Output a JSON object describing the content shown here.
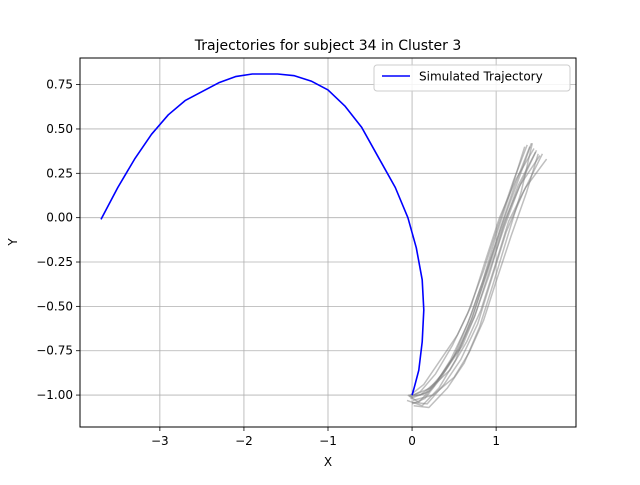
{
  "chart_data": {
    "type": "line",
    "title": "Trajectories for subject 34 in Cluster 3",
    "xlabel": "X",
    "ylabel": "Y",
    "xlim": [
      -3.95,
      1.95
    ],
    "ylim": [
      -1.18,
      0.9
    ],
    "xticks": [
      -3,
      -2,
      -1,
      0,
      1
    ],
    "xtick_labels": [
      "−3",
      "−2",
      "−1",
      "0",
      "1"
    ],
    "yticks": [
      -1.0,
      -0.75,
      -0.5,
      -0.25,
      0.0,
      0.25,
      0.5,
      0.75
    ],
    "ytick_labels": [
      "−1.00",
      "−0.75",
      "−0.50",
      "−0.25",
      "0.00",
      "0.25",
      "0.50",
      "0.75"
    ],
    "grid": true,
    "legend": {
      "position": "top-right",
      "entries": [
        "Simulated Trajectory"
      ]
    },
    "series": [
      {
        "name": "Simulated Trajectory",
        "color": "#0000ff",
        "x": [
          -3.7,
          -3.5,
          -3.3,
          -3.1,
          -2.9,
          -2.7,
          -2.5,
          -2.3,
          -2.1,
          -1.9,
          -1.6,
          -1.4,
          -1.2,
          -1.0,
          -0.8,
          -0.6,
          -0.4,
          -0.2,
          -0.05,
          0.05,
          0.12,
          0.14,
          0.12,
          0.08,
          0.03,
          0.0
        ],
        "y": [
          -0.01,
          0.17,
          0.33,
          0.47,
          0.58,
          0.66,
          0.71,
          0.76,
          0.795,
          0.81,
          0.81,
          0.8,
          0.77,
          0.72,
          0.63,
          0.51,
          0.34,
          0.17,
          0.0,
          -0.17,
          -0.35,
          -0.52,
          -0.7,
          -0.86,
          -0.95,
          -1.0
        ]
      }
    ],
    "observed_trajectories": {
      "color": "#808080",
      "opacity": 0.5,
      "paths": [
        {
          "x": [
            -0.04,
            0.1,
            0.3,
            0.5,
            0.7,
            0.9,
            1.1,
            1.3,
            1.42
          ],
          "y": [
            -1.0,
            -1.0,
            -0.92,
            -0.78,
            -0.55,
            -0.28,
            0.0,
            0.26,
            0.42
          ]
        },
        {
          "x": [
            -0.02,
            0.2,
            0.4,
            0.6,
            0.75,
            0.92,
            1.1,
            1.28,
            1.52
          ],
          "y": [
            -1.02,
            -0.98,
            -0.86,
            -0.72,
            -0.55,
            -0.3,
            -0.05,
            0.18,
            0.35
          ]
        },
        {
          "x": [
            0.0,
            0.15,
            0.35,
            0.55,
            0.72,
            0.88,
            1.05,
            1.22,
            1.4
          ],
          "y": [
            -1.05,
            -1.02,
            -0.9,
            -0.74,
            -0.56,
            -0.32,
            -0.06,
            0.18,
            0.4
          ]
        },
        {
          "x": [
            -0.06,
            0.12,
            0.32,
            0.52,
            0.7,
            0.9,
            1.1,
            1.3,
            1.48
          ],
          "y": [
            -1.03,
            -1.06,
            -0.96,
            -0.8,
            -0.58,
            -0.3,
            -0.02,
            0.2,
            0.38
          ]
        },
        {
          "x": [
            0.02,
            0.22,
            0.45,
            0.65,
            0.82,
            0.98,
            1.15,
            1.35,
            1.6
          ],
          "y": [
            -1.0,
            -0.96,
            -0.86,
            -0.7,
            -0.52,
            -0.28,
            -0.02,
            0.17,
            0.33
          ]
        },
        {
          "x": [
            -0.03,
            0.1,
            0.28,
            0.48,
            0.66,
            0.85,
            1.02,
            1.2,
            1.37
          ],
          "y": [
            -1.01,
            -0.98,
            -0.88,
            -0.72,
            -0.54,
            -0.3,
            -0.05,
            0.2,
            0.41
          ]
        },
        {
          "x": [
            0.0,
            0.18,
            0.38,
            0.58,
            0.78,
            0.95,
            1.12,
            1.32,
            1.55
          ],
          "y": [
            -1.04,
            -1.05,
            -0.94,
            -0.8,
            -0.6,
            -0.34,
            -0.08,
            0.14,
            0.36
          ]
        },
        {
          "x": [
            -0.02,
            0.14,
            0.34,
            0.54,
            0.7,
            0.86,
            1.04,
            1.24,
            1.45
          ],
          "y": [
            -1.0,
            -0.94,
            -0.8,
            -0.66,
            -0.5,
            -0.26,
            0.0,
            0.22,
            0.39
          ]
        },
        {
          "x": [
            0.01,
            0.25,
            0.5,
            0.68,
            0.85,
            1.0,
            1.18,
            1.36,
            1.5
          ],
          "y": [
            -1.03,
            -1.0,
            -0.9,
            -0.76,
            -0.58,
            -0.36,
            -0.1,
            0.14,
            0.36
          ]
        },
        {
          "x": [
            -0.05,
            0.08,
            0.26,
            0.46,
            0.66,
            0.84,
            1.0,
            1.18,
            1.34
          ],
          "y": [
            -1.0,
            -1.04,
            -0.95,
            -0.8,
            -0.6,
            -0.36,
            -0.1,
            0.16,
            0.4
          ]
        },
        {
          "x": [
            0.02,
            0.2,
            0.42,
            0.62,
            0.8,
            0.96,
            1.14,
            1.3,
            1.43
          ],
          "y": [
            -1.06,
            -1.07,
            -0.96,
            -0.82,
            -0.62,
            -0.38,
            -0.1,
            0.15,
            0.42
          ]
        },
        {
          "x": [
            -0.01,
            0.16,
            0.36,
            0.56,
            0.74,
            0.92,
            1.08,
            1.26,
            1.47
          ],
          "y": [
            -1.01,
            -0.99,
            -0.88,
            -0.74,
            -0.56,
            -0.32,
            -0.06,
            0.18,
            0.37
          ]
        }
      ]
    }
  }
}
